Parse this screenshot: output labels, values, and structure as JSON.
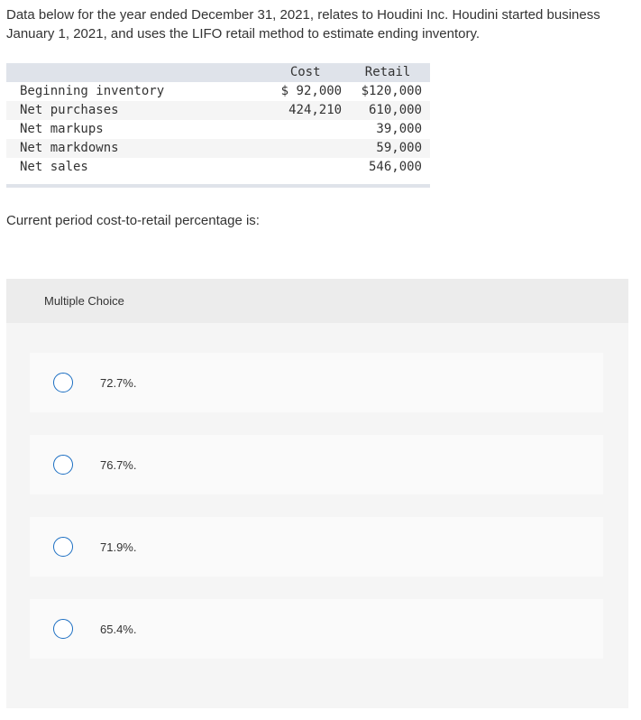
{
  "intro": {
    "line1": "Data below for the year ended December 31, 2021, relates to Houdini Inc. Houdini started business",
    "line2": "January 1, 2021, and uses the LIFO retail method to estimate ending inventory."
  },
  "table": {
    "headers": {
      "label": "",
      "cost": "Cost",
      "retail": "Retail"
    },
    "rows": [
      {
        "label": "Beginning inventory",
        "cost": "$ 92,000",
        "retail": "$120,000"
      },
      {
        "label": "Net purchases",
        "cost": "424,210",
        "retail": "610,000"
      },
      {
        "label": "Net markups",
        "cost": "",
        "retail": "39,000"
      },
      {
        "label": "Net markdowns",
        "cost": "",
        "retail": "59,000"
      },
      {
        "label": "Net sales",
        "cost": "",
        "retail": "546,000"
      }
    ]
  },
  "question": "Current period cost-to-retail percentage is:",
  "multiple_choice": {
    "header": "Multiple Choice",
    "options": [
      {
        "label": "72.7%."
      },
      {
        "label": "76.7%."
      },
      {
        "label": "71.9%."
      },
      {
        "label": "65.4%."
      }
    ]
  },
  "colors": {
    "radio_border": "#1b6ec2",
    "table_header_bg": "#dfe3ea",
    "panel_bg": "#f5f5f5"
  }
}
